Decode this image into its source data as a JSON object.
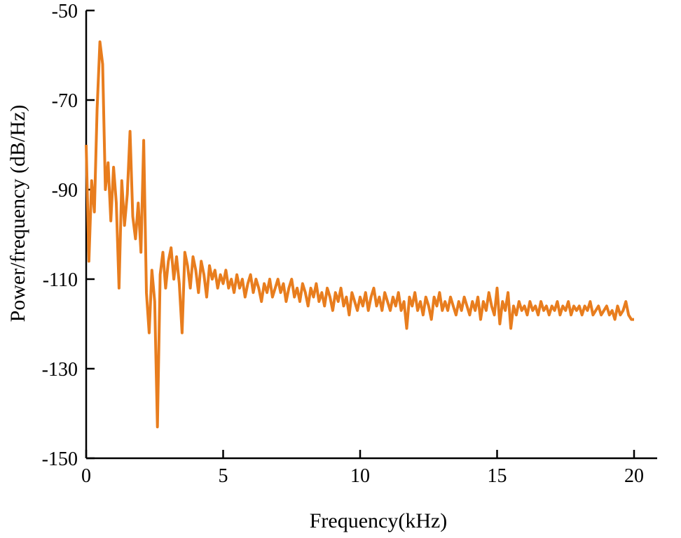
{
  "chart_data": {
    "type": "line",
    "title": "",
    "xlabel": "Frequency(kHz)",
    "ylabel": "Power/frequency (dB/Hz)",
    "xlim": [
      0,
      20
    ],
    "ylim": [
      -150,
      -50
    ],
    "x_ticks": [
      0,
      5,
      10,
      15,
      20
    ],
    "y_ticks": [
      -150,
      -130,
      -110,
      -90,
      -70,
      -50
    ],
    "grid": false,
    "legend": "none",
    "line_color": "#e87d1e",
    "axis_color": "#000000",
    "background": "#ffffff",
    "series": [
      {
        "name": "power-spectral-density",
        "x_start": 0,
        "x_step": 0.1,
        "values": [
          -80,
          -106,
          -88,
          -95,
          -72,
          -57,
          -62,
          -90,
          -84,
          -97,
          -85,
          -93,
          -112,
          -88,
          -98,
          -91,
          -77,
          -96,
          -101,
          -93,
          -104,
          -79,
          -113,
          -122,
          -108,
          -115,
          -143,
          -109,
          -104,
          -112,
          -106,
          -103,
          -110,
          -105,
          -111,
          -122,
          -104,
          -107,
          -112,
          -105,
          -108,
          -113,
          -106,
          -109,
          -114,
          -107,
          -110,
          -108,
          -112,
          -109,
          -111,
          -108,
          -112,
          -110,
          -113,
          -109,
          -112,
          -110,
          -114,
          -111,
          -109,
          -113,
          -110,
          -112,
          -115,
          -111,
          -113,
          -110,
          -114,
          -112,
          -110,
          -113,
          -111,
          -115,
          -112,
          -110,
          -114,
          -112,
          -115,
          -111,
          -113,
          -116,
          -112,
          -114,
          -111,
          -115,
          -113,
          -116,
          -112,
          -114,
          -117,
          -113,
          -115,
          -112,
          -116,
          -114,
          -118,
          -113,
          -115,
          -117,
          -114,
          -116,
          -113,
          -117,
          -114,
          -112,
          -116,
          -114,
          -117,
          -113,
          -115,
          -117,
          -114,
          -116,
          -113,
          -117,
          -115,
          -121,
          -114,
          -116,
          -113,
          -117,
          -115,
          -118,
          -114,
          -116,
          -119,
          -114,
          -116,
          -113,
          -117,
          -115,
          -117,
          -114,
          -116,
          -118,
          -115,
          -117,
          -114,
          -116,
          -118,
          -115,
          -117,
          -114,
          -119,
          -115,
          -117,
          -113,
          -116,
          -118,
          -112,
          -120,
          -115,
          -117,
          -113,
          -121,
          -116,
          -118,
          -115,
          -117,
          -116,
          -118,
          -115,
          -117,
          -116,
          -118,
          -115,
          -117,
          -116,
          -118,
          -116,
          -117,
          -115,
          -118,
          -116,
          -117,
          -115,
          -118,
          -116,
          -117,
          -116,
          -118,
          -116,
          -117,
          -115,
          -118,
          -117,
          -116,
          -118,
          -117,
          -116,
          -118,
          -117,
          -119,
          -116,
          -118,
          -117,
          -115,
          -118,
          -119,
          -119
        ]
      }
    ]
  }
}
